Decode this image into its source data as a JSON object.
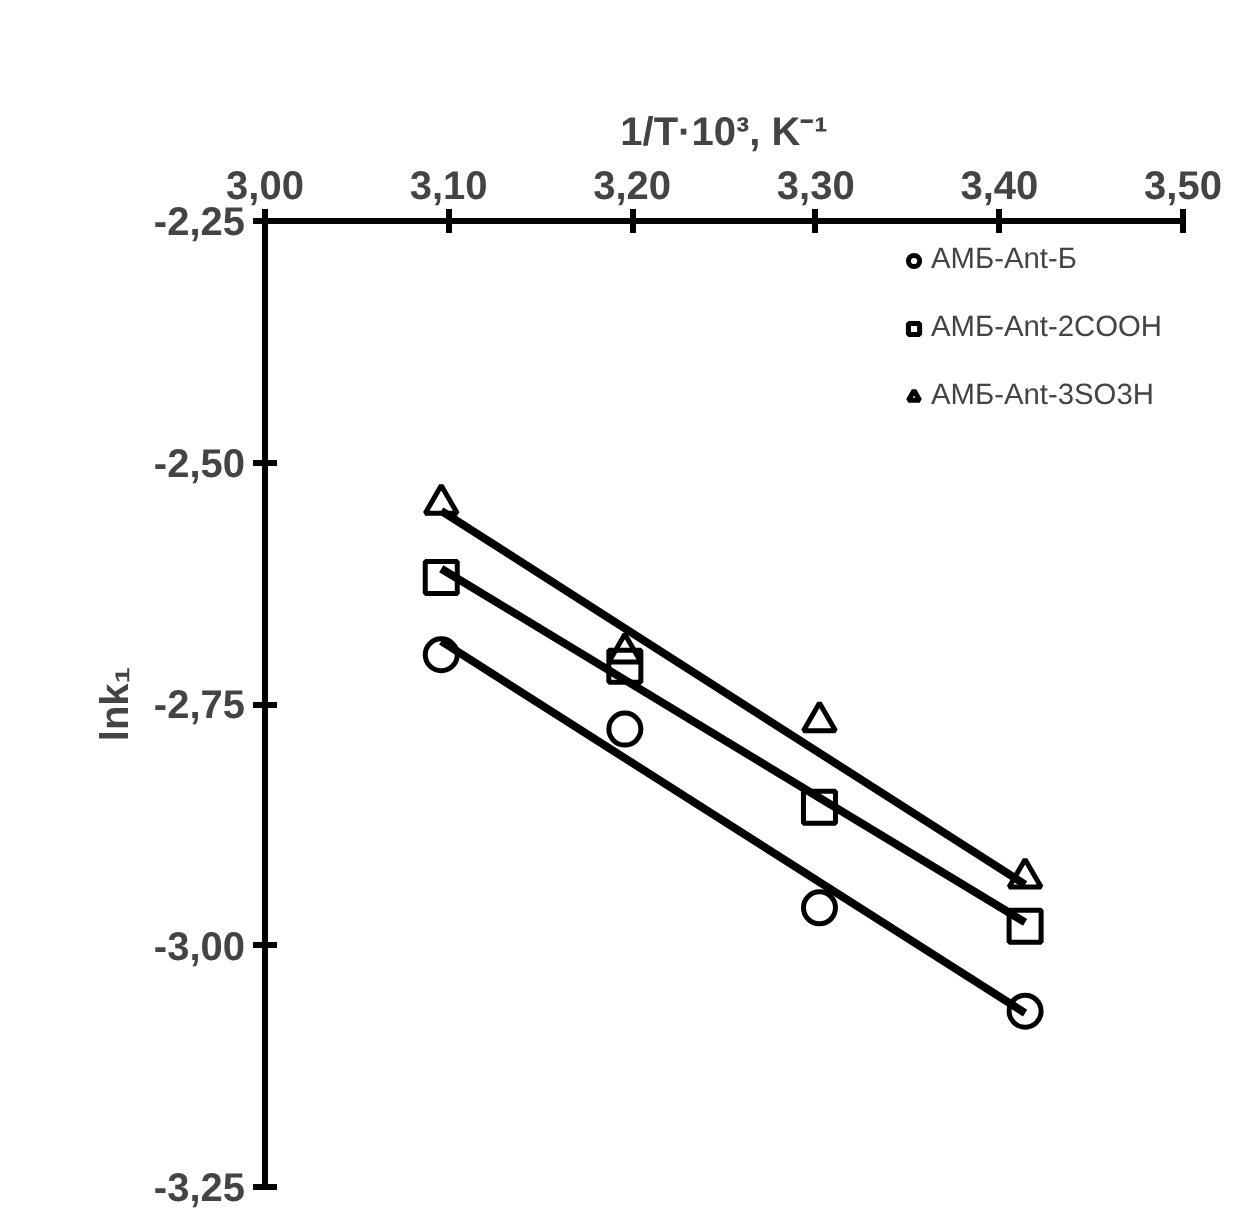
{
  "chart_data": {
    "type": "scatter",
    "xlabel": "1/T·10³, K⁻¹",
    "ylabel": "lnk₁",
    "xlim": [
      3.0,
      3.5
    ],
    "ylim": [
      -3.25,
      -2.25
    ],
    "xticks": [
      {
        "value": 3.0,
        "label": "3,00"
      },
      {
        "value": 3.1,
        "label": "3,10"
      },
      {
        "value": 3.2,
        "label": "3,20"
      },
      {
        "value": 3.3,
        "label": "3,30"
      },
      {
        "value": 3.4,
        "label": "3,40"
      },
      {
        "value": 3.5,
        "label": "3,50"
      }
    ],
    "yticks": [
      {
        "value": -2.25,
        "label": "-2,25"
      },
      {
        "value": -2.5,
        "label": "-2,50"
      },
      {
        "value": -2.75,
        "label": "-2,75"
      },
      {
        "value": -3.0,
        "label": "-3,00"
      },
      {
        "value": -3.25,
        "label": "-3,25"
      }
    ],
    "grid": false,
    "legend": "top right",
    "series": [
      {
        "name": "АМБ-Ant-Б",
        "color": "#000000",
        "marker": "circle",
        "x": [
          3.096,
          3.196,
          3.302,
          3.414
        ],
        "values": [
          -2.699,
          -2.776,
          -2.961,
          -3.068
        ]
      },
      {
        "name": "АМБ-Ant-2COOH",
        "color": "#000000",
        "marker": "square",
        "x": [
          3.096,
          3.196,
          3.302,
          3.414
        ],
        "values": [
          -2.619,
          -2.711,
          -2.857,
          -2.98
        ]
      },
      {
        "name": "АМБ-Ant-3SO3H",
        "color": "#000000",
        "marker": "triangle",
        "x": [
          3.096,
          3.196,
          3.302,
          3.414
        ],
        "values": [
          -2.543,
          -2.697,
          -2.768,
          -2.93
        ]
      },
      {
        "type": "line",
        "color": "#000000",
        "x": [
          3.096,
          3.414
        ],
        "values": [
          -2.685,
          -3.07
        ]
      },
      {
        "type": "line",
        "color": "#000000",
        "x": [
          3.096,
          3.414
        ],
        "values": [
          -2.61,
          -2.976
        ]
      },
      {
        "type": "line",
        "color": "#000000",
        "x": [
          3.096,
          3.414
        ],
        "values": [
          -2.55,
          -2.937
        ]
      }
    ]
  }
}
